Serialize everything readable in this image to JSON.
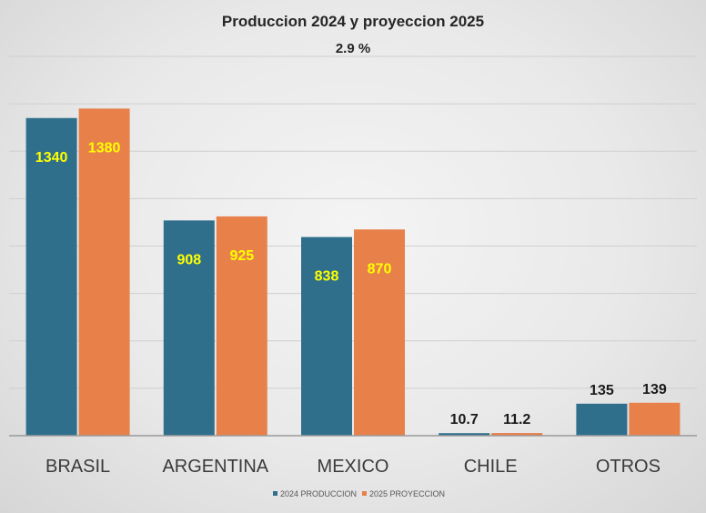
{
  "chart_data": {
    "type": "bar",
    "title": "Produccion 2024 y proyeccion 2025",
    "subtitle": "2.9 %",
    "categories": [
      "BRASIL",
      "ARGENTINA",
      "MEXICO",
      "CHILE",
      "OTROS"
    ],
    "series": [
      {
        "name": "2024 PRODUCCION",
        "color": "#2f6f8c",
        "values": [
          1340,
          908,
          838,
          10.7,
          135
        ],
        "labels": [
          "1340",
          "908",
          "838",
          "10.7",
          "135"
        ]
      },
      {
        "name": "2025 PROYECCION",
        "color": "#e8804a",
        "values": [
          1380,
          925,
          870,
          11.2,
          139
        ],
        "labels": [
          "1380",
          "925",
          "870",
          "11.2",
          "139"
        ]
      }
    ],
    "ylim": [
      0,
      1600
    ],
    "grid": true,
    "legend": "bottom",
    "label_colors": {
      "inside_bar": "#ffff00",
      "outside_bar": "#1a1a1a"
    }
  }
}
